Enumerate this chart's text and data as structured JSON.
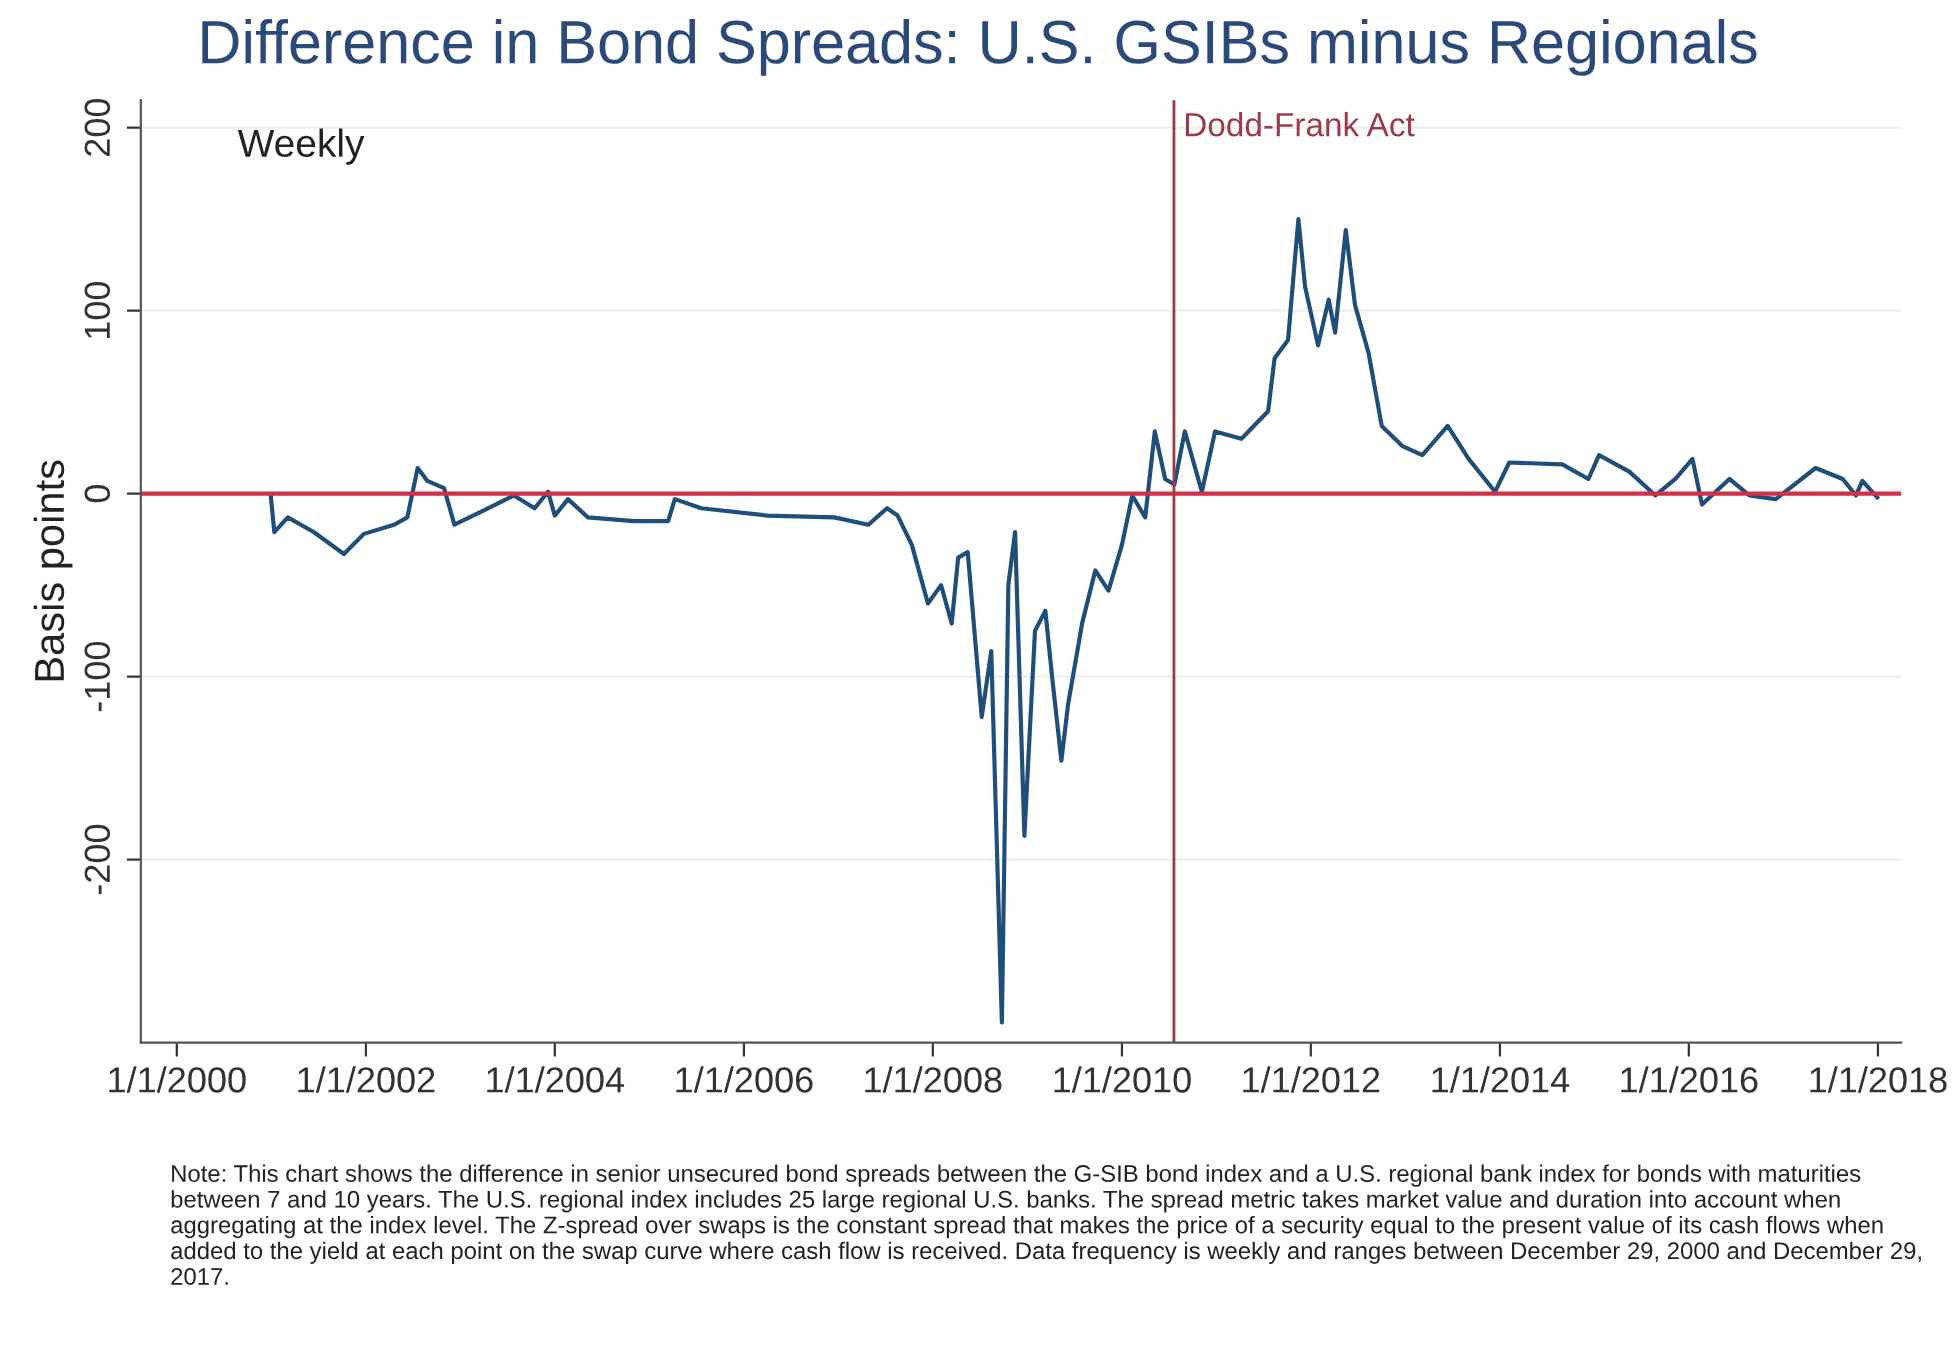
{
  "chart_data": {
    "type": "line",
    "title": "Difference in Bond Spreads: U.S. GSIBs minus Regionals",
    "ylabel": "Basis points",
    "annotations": [
      "Weekly",
      "Note: This chart shows the difference in senior unsecured bond spreads between the G-SIB bond index and a U.S. regional bank index for bonds with maturities between 7 and 10 years. The U.S. regional index includes 25 large regional U.S. banks. The spread metric takes market value and duration into account when aggregating at the index level. The Z-spread over swaps is the constant spread that makes the price of a security equal to the present value of its cash flows when added to the yield at each point on the swap curve where cash flow is received. Data frequency is weekly and ranges between December 29, 2000 and December 29, 2017."
    ],
    "x": [
      "2000-12-29",
      "2001-01-12",
      "2001-03-05",
      "2001-06-13",
      "2001-10-08",
      "2001-12-24",
      "2002-04-20",
      "2002-06-10",
      "2002-07-20",
      "2002-08-26",
      "2002-10-30",
      "2002-12-09",
      "2003-03-21",
      "2003-07-27",
      "2003-10-15",
      "2003-12-06",
      "2004-01-01",
      "2004-02-21",
      "2004-05-08",
      "2004-11-03",
      "2005-03-14",
      "2005-04-09",
      "2005-07-20",
      "2006-04-01",
      "2006-12-16",
      "2007-04-27",
      "2007-07-08",
      "2007-08-18",
      "2007-10-12",
      "2007-12-13",
      "2008-02-02",
      "2008-03-14",
      "2008-04-08",
      "2008-05-15",
      "2008-07-08",
      "2008-08-14",
      "2008-09-24",
      "2008-10-19",
      "2008-11-14",
      "2008-12-20",
      "2009-01-30",
      "2009-03-11",
      "2009-04-06",
      "2009-05-12",
      "2009-06-07",
      "2009-07-31",
      "2009-09-20",
      "2009-11-10",
      "2010-01-01",
      "2010-02-10",
      "2010-04-01",
      "2010-05-08",
      "2010-06-17",
      "2010-07-23",
      "2010-09-01",
      "2010-11-06",
      "2010-12-27",
      "2011-04-08",
      "2011-07-20",
      "2011-08-14",
      "2011-10-05",
      "2011-11-14",
      "2011-12-10",
      "2012-01-29",
      "2012-03-10",
      "2012-04-04",
      "2012-05-15",
      "2012-06-20",
      "2012-08-11",
      "2012-10-01",
      "2012-12-20",
      "2013-03-07",
      "2013-06-13",
      "2013-09-02",
      "2013-12-13",
      "2014-02-06",
      "2014-08-30",
      "2014-12-09",
      "2015-01-19",
      "2015-05-16",
      "2015-08-25",
      "2015-11-10",
      "2016-01-15",
      "2016-02-21",
      "2016-06-06",
      "2016-08-22",
      "2016-12-02",
      "2017-05-05",
      "2017-08-18",
      "2017-10-08",
      "2017-11-02",
      "2017-12-29"
    ],
    "series": [
      {
        "color": "#1f4e79",
        "values": [
          -1,
          -21,
          -13,
          -21,
          -33,
          -22,
          -17,
          -13,
          14,
          7,
          3,
          -17,
          -10,
          -1,
          -8,
          1,
          -12,
          -3,
          -13,
          -15,
          -15,
          -3,
          -8,
          -12,
          -13,
          -17,
          -8,
          -12,
          -28,
          -60,
          -50,
          -71,
          -35,
          -32,
          -122,
          -86,
          -289,
          -50,
          -21,
          -187,
          -75,
          -64,
          -100,
          -146,
          -115,
          -71,
          -42,
          -53,
          -28,
          -1,
          -13,
          34,
          8,
          5,
          34,
          1,
          34,
          30,
          45,
          74,
          84,
          150,
          113,
          81,
          106,
          88,
          144,
          103,
          77,
          37,
          26,
          21,
          37,
          19,
          1,
          17,
          16,
          8,
          21,
          12,
          -1,
          8,
          19,
          -6,
          8,
          -1,
          -3,
          14,
          8,
          -1,
          7,
          -2
        ]
      }
    ],
    "xlim": [
      "1999-08-15",
      "2018-04-01"
    ],
    "xticks": [
      {
        "value": "2000-01-01",
        "label": "1/1/2000"
      },
      {
        "value": "2002-01-01",
        "label": "1/1/2002"
      },
      {
        "value": "2004-01-01",
        "label": "1/1/2004"
      },
      {
        "value": "2006-01-01",
        "label": "1/1/2006"
      },
      {
        "value": "2008-01-01",
        "label": "1/1/2008"
      },
      {
        "value": "2010-01-01",
        "label": "1/1/2010"
      },
      {
        "value": "2012-01-01",
        "label": "1/1/2012"
      },
      {
        "value": "2014-01-01",
        "label": "1/1/2014"
      },
      {
        "value": "2016-01-01",
        "label": "1/1/2016"
      },
      {
        "value": "2018-01-01",
        "label": "1/1/2018"
      }
    ],
    "ylim": [
      -300,
      215
    ],
    "yticks": [
      -200,
      -100,
      0,
      100,
      200
    ],
    "ref_lines": [
      {
        "axis": "y",
        "value": 0,
        "color": "#d0304a"
      },
      {
        "axis": "x",
        "value": "2010-07-21",
        "label": "Dodd-Frank Act",
        "color": "#9b3b4a"
      }
    ],
    "grid": "y",
    "legend": false,
    "marker": "none",
    "line_style": "solid"
  }
}
